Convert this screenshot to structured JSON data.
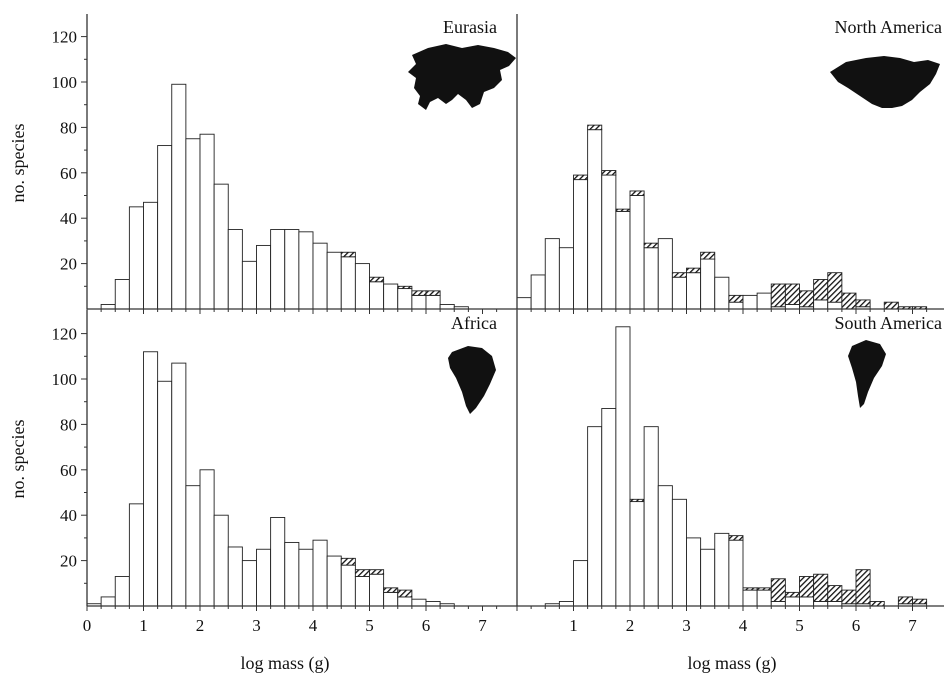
{
  "chart_data": [
    {
      "type": "bar",
      "title": "Eurasia",
      "xlabel": "",
      "ylabel": "no. species",
      "xlim": [
        0,
        7.4
      ],
      "ylim": [
        0,
        130
      ],
      "yticks": [
        20,
        40,
        60,
        80,
        100,
        120
      ],
      "bin_width": 0.25,
      "bin_starts": [
        0.0,
        0.25,
        0.5,
        0.75,
        1.0,
        1.25,
        1.5,
        1.75,
        2.0,
        2.25,
        2.5,
        2.75,
        3.0,
        3.25,
        3.5,
        3.75,
        4.0,
        4.25,
        4.5,
        4.75,
        5.0,
        5.25,
        5.5,
        5.75,
        6.0,
        6.25,
        6.5,
        6.75,
        7.0
      ],
      "series": [
        {
          "values": [
            0,
            2,
            13,
            45,
            47,
            72,
            99,
            75,
            77,
            55,
            35,
            21,
            28,
            35,
            35,
            34,
            29,
            25,
            23,
            20,
            12,
            11,
            9,
            6,
            6,
            2,
            1,
            0,
            0
          ]
        },
        {
          "values": [
            0,
            0,
            0,
            0,
            0,
            0,
            0,
            0,
            0,
            0,
            0,
            0,
            0,
            0,
            0,
            0,
            0,
            0,
            2,
            0,
            2,
            0,
            1,
            2,
            2,
            0,
            0,
            0,
            0
          ]
        }
      ]
    },
    {
      "type": "bar",
      "title": "North America",
      "xlabel": "",
      "ylabel": "",
      "xlim": [
        0,
        7.4
      ],
      "ylim": [
        0,
        130
      ],
      "bin_width": 0.25,
      "bin_starts": [
        0.0,
        0.25,
        0.5,
        0.75,
        1.0,
        1.25,
        1.5,
        1.75,
        2.0,
        2.25,
        2.5,
        2.75,
        3.0,
        3.25,
        3.5,
        3.75,
        4.0,
        4.25,
        4.5,
        4.75,
        5.0,
        5.25,
        5.5,
        5.75,
        6.0,
        6.25,
        6.5,
        6.75,
        7.0
      ],
      "series": [
        {
          "values": [
            5,
            15,
            31,
            27,
            57,
            79,
            59,
            43,
            50,
            27,
            31,
            14,
            16,
            22,
            14,
            3,
            6,
            7,
            1,
            2,
            1,
            4,
            3,
            0,
            1,
            0,
            0,
            0,
            0
          ]
        },
        {
          "values": [
            0,
            0,
            0,
            0,
            2,
            2,
            2,
            1,
            2,
            2,
            0,
            2,
            2,
            3,
            0,
            3,
            0,
            0,
            10,
            9,
            7,
            9,
            13,
            7,
            3,
            0,
            3,
            1,
            1
          ]
        }
      ]
    },
    {
      "type": "bar",
      "title": "Africa",
      "xlabel": "log mass (g)",
      "ylabel": "no. species",
      "xlim": [
        0,
        7.4
      ],
      "ylim": [
        0,
        130
      ],
      "xticks": [
        0,
        1,
        2,
        3,
        4,
        5,
        6,
        7
      ],
      "yticks": [
        20,
        40,
        60,
        80,
        100,
        120
      ],
      "bin_width": 0.25,
      "bin_starts": [
        0.0,
        0.25,
        0.5,
        0.75,
        1.0,
        1.25,
        1.5,
        1.75,
        2.0,
        2.25,
        2.5,
        2.75,
        3.0,
        3.25,
        3.5,
        3.75,
        4.0,
        4.25,
        4.5,
        4.75,
        5.0,
        5.25,
        5.5,
        5.75,
        6.0,
        6.25,
        6.5,
        6.75,
        7.0
      ],
      "series": [
        {
          "values": [
            1,
            4,
            13,
            45,
            112,
            99,
            107,
            53,
            60,
            40,
            26,
            20,
            25,
            39,
            28,
            25,
            29,
            22,
            18,
            13,
            14,
            6,
            4,
            3,
            2,
            1,
            0,
            0,
            0
          ]
        },
        {
          "values": [
            0,
            0,
            0,
            0,
            0,
            0,
            0,
            0,
            0,
            0,
            0,
            0,
            0,
            0,
            0,
            0,
            0,
            0,
            3,
            3,
            2,
            2,
            3,
            0,
            0,
            0,
            0,
            0,
            0
          ]
        }
      ]
    },
    {
      "type": "bar",
      "title": "South America",
      "xlabel": "log mass (g)",
      "ylabel": "",
      "xlim": [
        0,
        7.4
      ],
      "ylim": [
        0,
        130
      ],
      "xticks": [
        1,
        2,
        3,
        4,
        5,
        6,
        7
      ],
      "bin_width": 0.25,
      "bin_starts": [
        0.0,
        0.25,
        0.5,
        0.75,
        1.0,
        1.25,
        1.5,
        1.75,
        2.0,
        2.25,
        2.5,
        2.75,
        3.0,
        3.25,
        3.5,
        3.75,
        4.0,
        4.25,
        4.5,
        4.75,
        5.0,
        5.25,
        5.5,
        5.75,
        6.0,
        6.25,
        6.5,
        6.75,
        7.0
      ],
      "series": [
        {
          "values": [
            0,
            0,
            1,
            2,
            20,
            79,
            87,
            123,
            46,
            79,
            53,
            47,
            30,
            25,
            32,
            29,
            7,
            7,
            2,
            4,
            4,
            2,
            2,
            1,
            1,
            0,
            0,
            1,
            1
          ]
        },
        {
          "values": [
            0,
            0,
            0,
            0,
            0,
            0,
            0,
            0,
            1,
            0,
            0,
            0,
            0,
            0,
            0,
            2,
            1,
            1,
            10,
            2,
            9,
            12,
            7,
            6,
            15,
            2,
            0,
            3,
            2
          ]
        }
      ]
    }
  ]
}
